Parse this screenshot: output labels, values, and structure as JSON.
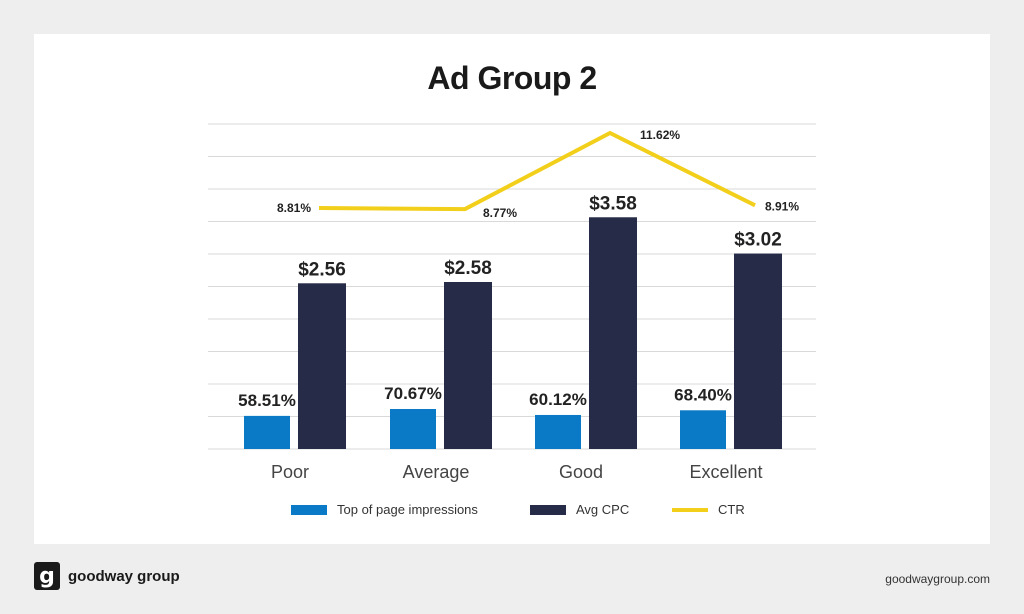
{
  "chart_data": {
    "type": "bar",
    "title": "Ad Group 2",
    "categories": [
      "Poor",
      "Average",
      "Good",
      "Excellent"
    ],
    "series": [
      {
        "name": "Top of page impressions",
        "type": "bar",
        "axis": "left",
        "values": [
          58.51,
          70.67,
          60.12,
          68.4
        ],
        "labels": [
          "58.51%",
          "70.67%",
          "60.12%",
          "68.40%"
        ],
        "color": "#0a7ac6"
      },
      {
        "name": "Avg CPC",
        "type": "bar",
        "axis": "right",
        "values": [
          2.56,
          2.58,
          3.58,
          3.02
        ],
        "labels": [
          "$2.56",
          "$2.58",
          "$3.58",
          "$3.02"
        ],
        "color": "#262b47"
      },
      {
        "name": "CTR",
        "type": "line",
        "axis": "line",
        "values": [
          8.81,
          8.77,
          11.62,
          8.91
        ],
        "labels": [
          "8.81%",
          "8.77%",
          "11.62%",
          "8.91%"
        ],
        "color": "#f2cf1b"
      }
    ],
    "grid": true,
    "legend": "bottom-center"
  },
  "colors": {
    "background": "#eeeeee",
    "card": "#ffffff",
    "grid": "#d9d9d9"
  },
  "footer": {
    "brand": "goodway group",
    "logo_letter": "g",
    "url": "goodwaygroup.com"
  }
}
